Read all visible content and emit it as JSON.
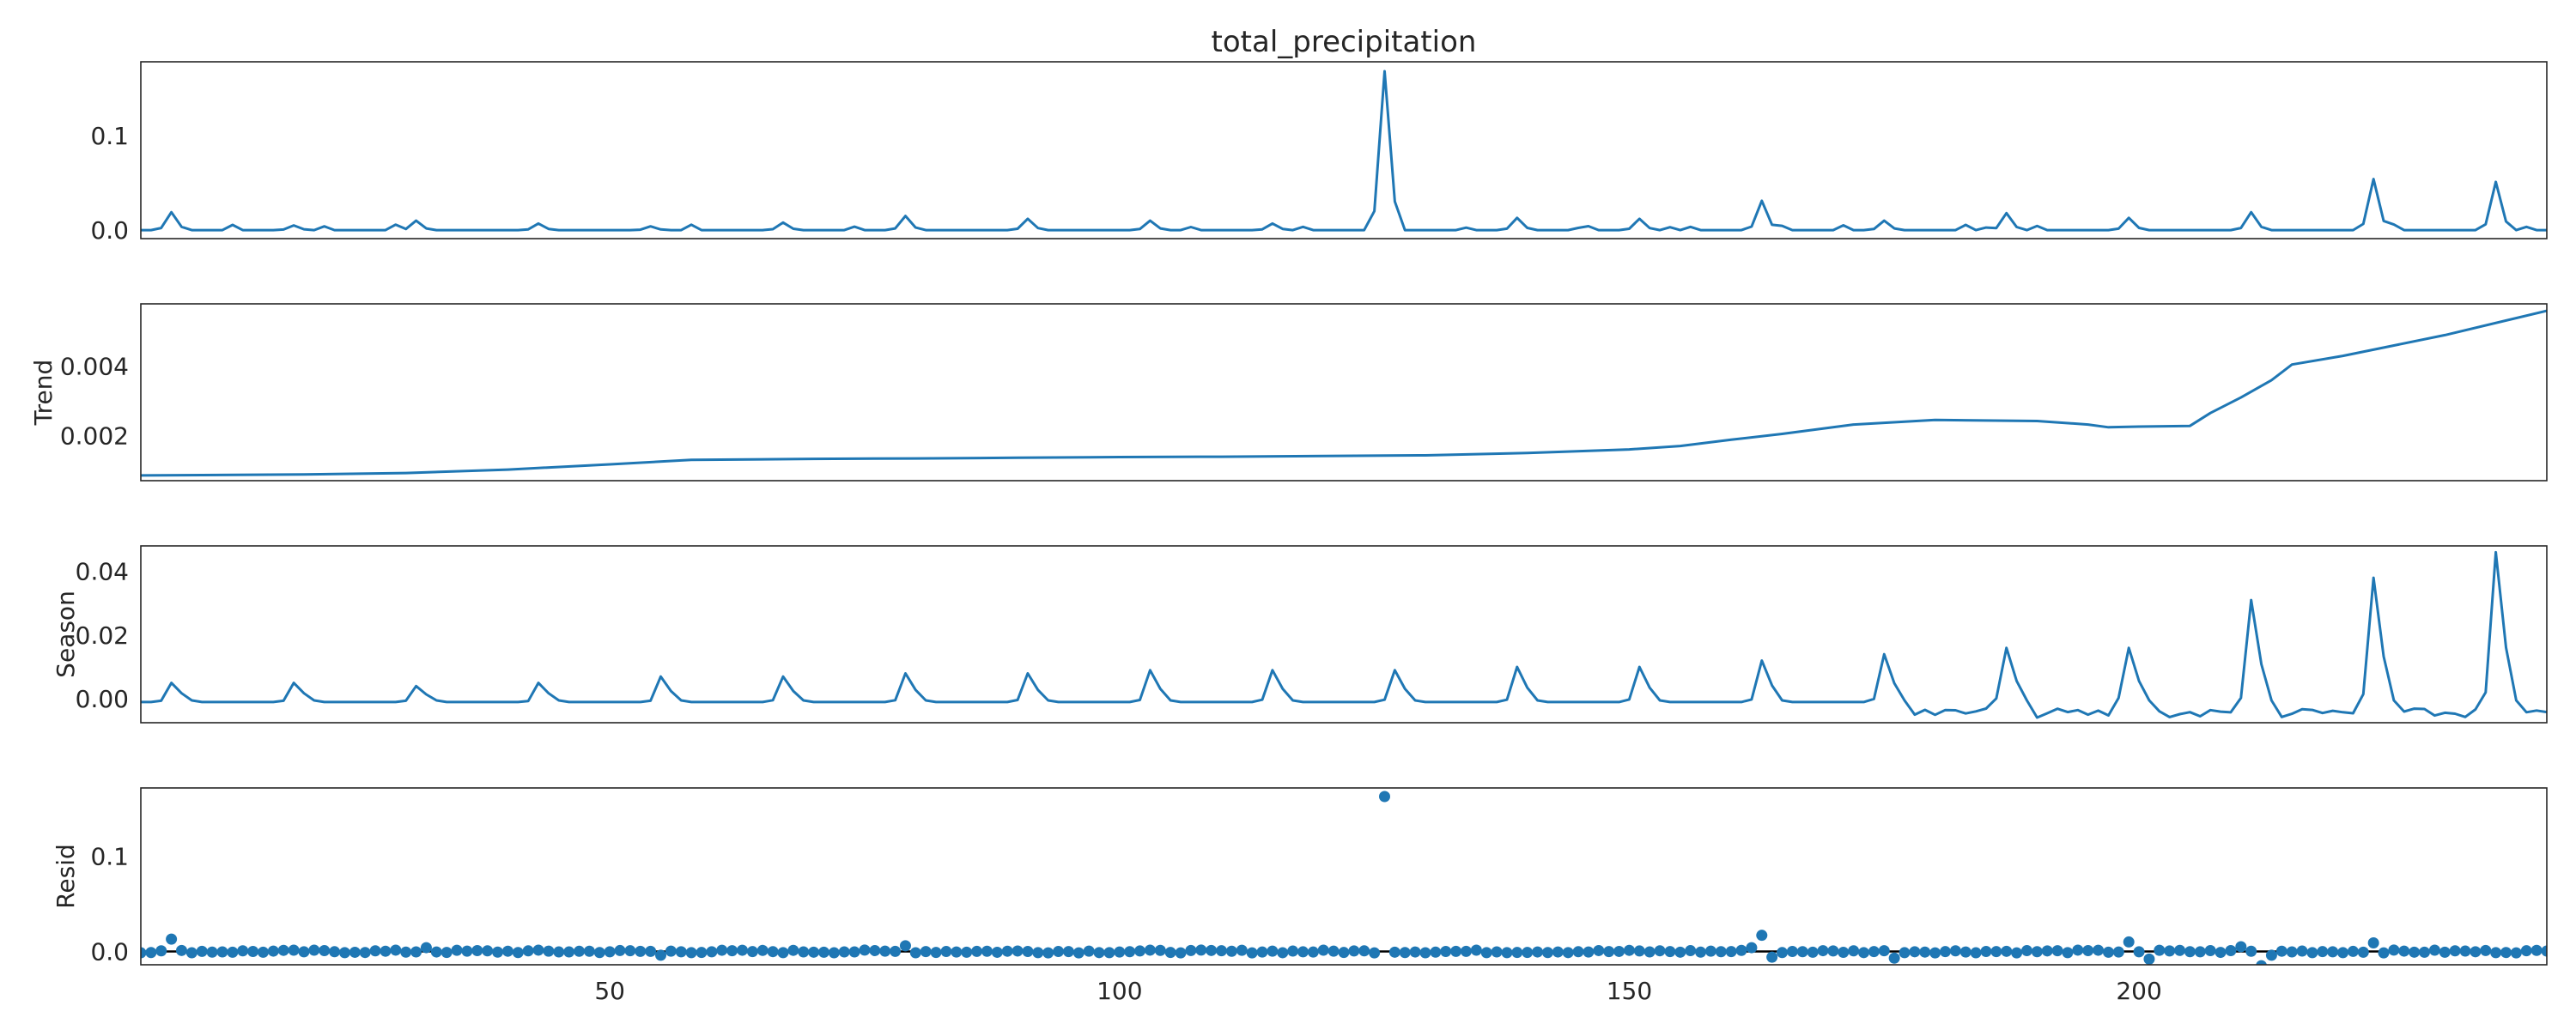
{
  "figure": {
    "title": "total_precipitation"
  },
  "colors": {
    "series": "#1f77b4",
    "zero_line": "#000000",
    "frame": "#262626"
  },
  "chart_data": [
    {
      "type": "line",
      "ylabel": "",
      "xlim": [
        4,
        240
      ],
      "ylim": [
        -0.009,
        0.178
      ],
      "yticks": [
        0.0,
        0.1
      ],
      "ytick_labels": [
        "0.0",
        "0.1"
      ],
      "xticks": [],
      "xtick_labels": [],
      "grid": false,
      "baseline": 0,
      "events": [
        {
          "x": 7,
          "y": 0.019
        },
        {
          "x": 19,
          "y": 0.005
        },
        {
          "x": 31,
          "y": 0.01
        },
        {
          "x": 43,
          "y": 0.007
        },
        {
          "x": 54,
          "y": 0.004
        },
        {
          "x": 67,
          "y": 0.008
        },
        {
          "x": 79,
          "y": 0.015
        },
        {
          "x": 91,
          "y": 0.012
        },
        {
          "x": 103,
          "y": 0.01
        },
        {
          "x": 115,
          "y": 0.007
        },
        {
          "x": 126,
          "y": 0.168
        },
        {
          "x": 139,
          "y": 0.013
        },
        {
          "x": 151,
          "y": 0.012
        },
        {
          "x": 163,
          "y": 0.031
        },
        {
          "x": 175,
          "y": 0.01
        },
        {
          "x": 187,
          "y": 0.018
        },
        {
          "x": 199,
          "y": 0.013
        },
        {
          "x": 211,
          "y": 0.019
        },
        {
          "x": 223,
          "y": 0.054
        },
        {
          "x": 235,
          "y": 0.051
        }
      ]
    },
    {
      "type": "line",
      "ylabel": "Trend",
      "xlim": [
        4,
        240
      ],
      "ylim": [
        0.0007,
        0.0058
      ],
      "yticks": [
        0.002,
        0.004
      ],
      "ytick_labels": [
        "0.002",
        "0.004"
      ],
      "xticks": [],
      "xtick_labels": [],
      "grid": false,
      "x": [
        4,
        10,
        20,
        30,
        40,
        50,
        58,
        70,
        80,
        90,
        100,
        110,
        120,
        130,
        140,
        150,
        155,
        160,
        165,
        172,
        180,
        190,
        195,
        197,
        200,
        205,
        207,
        210,
        213,
        215,
        220,
        230,
        240
      ],
      "y": [
        0.00085,
        0.00086,
        0.00088,
        0.00092,
        0.00102,
        0.00117,
        0.0013,
        0.00133,
        0.00134,
        0.00136,
        0.00138,
        0.00139,
        0.00141,
        0.00143,
        0.0015,
        0.0016,
        0.0017,
        0.00188,
        0.00205,
        0.00232,
        0.00245,
        0.00242,
        0.00232,
        0.00224,
        0.00226,
        0.00228,
        0.00265,
        0.0031,
        0.0036,
        0.00405,
        0.0043,
        0.0049,
        0.0056
      ]
    },
    {
      "type": "line",
      "ylabel": "Season",
      "xlim": [
        4,
        240
      ],
      "ylim": [
        -0.0075,
        0.048
      ],
      "yticks": [
        0.0,
        0.02,
        0.04
      ],
      "ytick_labels": [
        "0.00",
        "0.02",
        "0.04"
      ],
      "xticks": [],
      "xtick_labels": [],
      "grid": false,
      "period": 12,
      "x0": 4,
      "n": 237,
      "baseline": -0.001,
      "peaks": [
        0.005,
        0.005,
        0.004,
        0.005,
        0.007,
        0.007,
        0.008,
        0.008,
        0.009,
        0.009,
        0.009,
        0.01,
        0.01,
        0.012,
        0.014,
        0.016,
        0.016,
        0.031,
        0.038,
        0.046
      ],
      "noise_after": 178
    },
    {
      "type": "scatter",
      "ylabel": "Resid",
      "xlim": [
        4,
        240
      ],
      "ylim": [
        -0.014,
        0.172
      ],
      "yticks": [
        0.0,
        0.1
      ],
      "ytick_labels": [
        "0.0",
        "0.1"
      ],
      "xticks": [
        50,
        100,
        150,
        200
      ],
      "xtick_labels": [
        "50",
        "100",
        "150",
        "200"
      ],
      "grid": false,
      "x0": 4,
      "n": 237,
      "outliers": [
        {
          "x": 7,
          "y": 0.013
        },
        {
          "x": 32,
          "y": 0.004
        },
        {
          "x": 55,
          "y": -0.004
        },
        {
          "x": 79,
          "y": 0.006
        },
        {
          "x": 126,
          "y": 0.163
        },
        {
          "x": 162,
          "y": 0.004
        },
        {
          "x": 163,
          "y": 0.017
        },
        {
          "x": 164,
          "y": -0.006
        },
        {
          "x": 176,
          "y": -0.007
        },
        {
          "x": 199,
          "y": 0.01
        },
        {
          "x": 201,
          "y": -0.008
        },
        {
          "x": 210,
          "y": 0.005
        },
        {
          "x": 212,
          "y": -0.015
        },
        {
          "x": 213,
          "y": -0.004
        },
        {
          "x": 223,
          "y": 0.009
        }
      ]
    }
  ]
}
